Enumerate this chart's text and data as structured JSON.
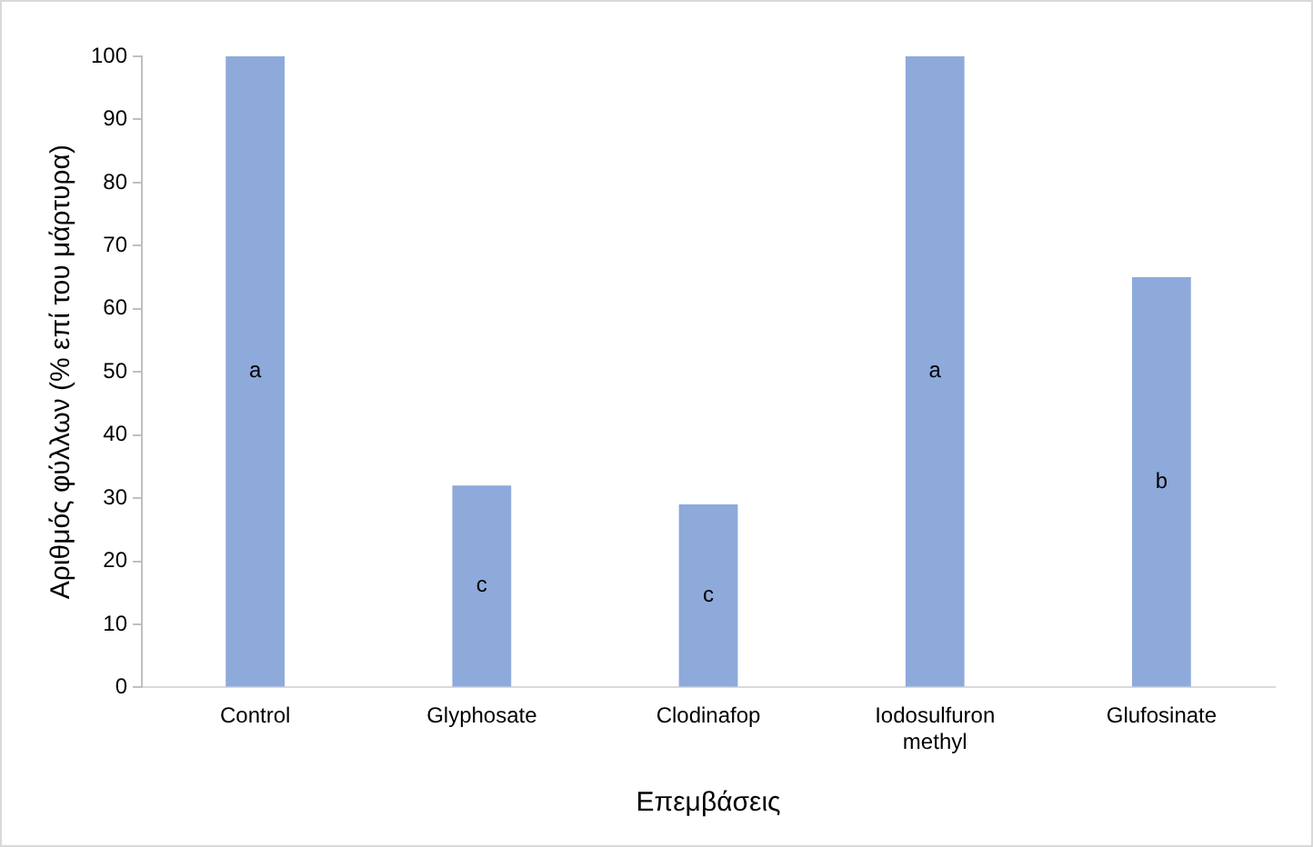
{
  "chart_data": {
    "type": "bar",
    "xlabel": "Επεμβάσεις",
    "ylabel": "Αριθμός φύλλων (% επί του μάρτυρα)",
    "categories": [
      "Control",
      "Glyphosate",
      "Clodinafop",
      "Iodosulfuron methyl",
      "Glufosinate"
    ],
    "values": [
      100,
      32,
      29,
      100,
      65
    ],
    "color": "#8eaadb",
    "ylim": [
      0,
      100
    ],
    "yticks": [
      0,
      10,
      20,
      30,
      40,
      50,
      60,
      70,
      80,
      90,
      100
    ],
    "grid": false,
    "legend": false,
    "annotations": [
      "a",
      "c",
      "c",
      "a",
      "b"
    ]
  }
}
